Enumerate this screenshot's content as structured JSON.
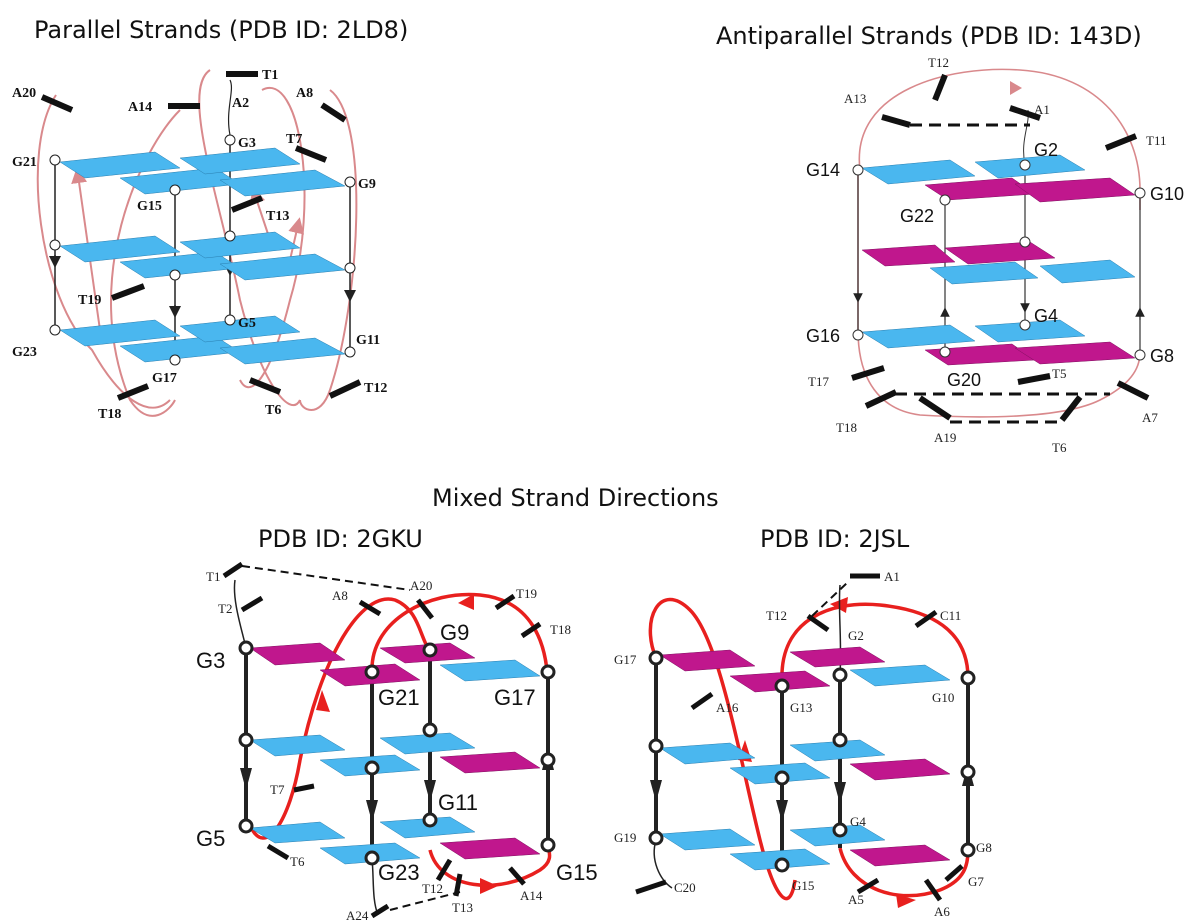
{
  "titles": {
    "parallel": "Parallel Strands (PDB ID: 2LD8)",
    "antiparallel": "Antiparallel Strands (PDB ID: 143D)",
    "mixed": "Mixed Strand Directions",
    "mixed_a": "PDB ID: 2GKU",
    "mixed_b": "PDB ID: 2JSL"
  },
  "colors": {
    "blue_plate": "#4ab7ef",
    "magenta_plate": "#c0178d",
    "loop_light": "#d9898c",
    "loop_red": "#e8201e",
    "line": "#222222"
  },
  "parallel": {
    "labels": {
      "a20": "A20",
      "a14": "A14",
      "t1": "T1",
      "a2": "A2",
      "a8": "A8",
      "g3": "G3",
      "t7": "T7",
      "g21": "G21",
      "g9": "G9",
      "g15": "G15",
      "t13": "T13",
      "t19": "T19",
      "g5": "G5",
      "g23": "G23",
      "g11": "G11",
      "g17": "G17",
      "t18": "T18",
      "t6": "T6",
      "t12": "T12"
    }
  },
  "antiparallel": {
    "labels": {
      "t12": "T12",
      "a13": "A13",
      "a1": "A1",
      "t11": "T11",
      "g2": "G2",
      "g14": "G14",
      "g10": "G10",
      "g22": "G22",
      "g4": "G4",
      "g16": "G16",
      "g8": "G8",
      "t17": "T17",
      "g20": "G20",
      "t5": "T5",
      "t18": "T18",
      "a7": "A7",
      "a19": "A19",
      "t6": "T6"
    }
  },
  "mixed_a": {
    "labels": {
      "t1": "T1",
      "t2": "T2",
      "a20": "A20",
      "a8": "A8",
      "t19": "T19",
      "t18": "T18",
      "g9": "G9",
      "g3": "G3",
      "g21": "G21",
      "g17": "G17",
      "t7": "T7",
      "g11": "G11",
      "g5": "G5",
      "t6": "T6",
      "g23": "G23",
      "g15": "G15",
      "t12": "T12",
      "a14": "A14",
      "a24": "A24",
      "t13": "T13"
    }
  },
  "mixed_b": {
    "labels": {
      "a1": "A1",
      "t12": "T12",
      "c11": "C11",
      "g2": "G2",
      "g17": "G17",
      "a16": "A16",
      "g13": "G13",
      "g10": "G10",
      "g4": "G4",
      "g19": "G19",
      "g8": "G8",
      "c20": "C20",
      "g15": "G15",
      "a5": "A5",
      "g7": "G7",
      "a6": "A6"
    }
  }
}
